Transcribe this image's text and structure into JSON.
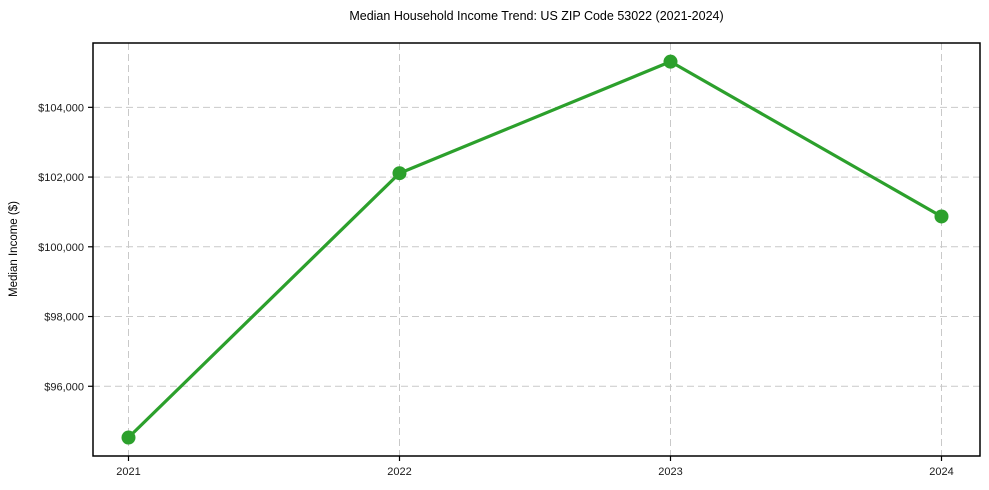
{
  "chart_data": {
    "type": "line",
    "title": "Median Household Income Trend: US ZIP Code 53022 (2021-2024)",
    "xlabel": "",
    "ylabel": "Median Income ($)",
    "categories": [
      "2021",
      "2022",
      "2023",
      "2024"
    ],
    "series": [
      {
        "name": "Median Household Income",
        "values": [
          94530,
          102110,
          105310,
          100870
        ]
      }
    ],
    "yticks": [
      96000,
      98000,
      100000,
      102000,
      104000
    ],
    "ytick_labels": [
      "$96,000",
      "$98,000",
      "$100,000",
      "$102,000",
      "$104,000"
    ],
    "ylim": [
      94000,
      105845
    ],
    "grid": true,
    "grid_style": "dashed",
    "legend": "none",
    "line_color": "#2ca02c",
    "marker": "circle",
    "grid_color": "#c9c9c9",
    "spine_color": "#000000",
    "background_color": "#ffffff",
    "tick_label_color": "#1a1a1a"
  }
}
